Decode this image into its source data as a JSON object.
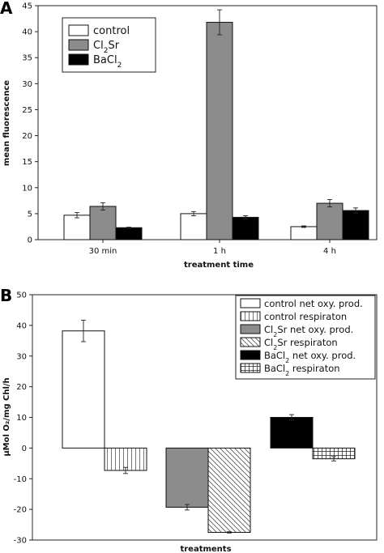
{
  "chart_data": [
    {
      "panel": "A",
      "type": "bar",
      "xlabel": "treatment time",
      "ylabel": "mean fluorescence",
      "ylim": [
        0,
        45
      ],
      "yticks": [
        0,
        5,
        10,
        15,
        20,
        25,
        30,
        35,
        40,
        45
      ],
      "categories": [
        "30 min",
        "1 h",
        "4 h"
      ],
      "grid": false,
      "legend": "top-left",
      "series": [
        {
          "name": "control",
          "label_html": "control",
          "fill": "#ffffff",
          "values": [
            4.7,
            5.0,
            2.5
          ],
          "errors": [
            0.5,
            0.4,
            0.15
          ]
        },
        {
          "name": "Cl2Sr",
          "label_html": "Cl<tspan baseline-shift=\"sub\" font-size=\"9\">2</tspan>Sr",
          "fill": "#8c8c8c",
          "values": [
            6.4,
            41.8,
            7.0
          ],
          "errors": [
            0.7,
            2.4,
            0.7
          ]
        },
        {
          "name": "BaCl2",
          "label_html": "BaCl<tspan baseline-shift=\"sub\" font-size=\"9\">2</tspan>",
          "fill": "#000000",
          "values": [
            2.3,
            4.3,
            5.6
          ],
          "errors": [
            0.1,
            0.3,
            0.5
          ]
        }
      ]
    },
    {
      "panel": "B",
      "type": "bar",
      "xlabel": "treatments",
      "ylabel": "μMol O₂/mg Chl/h",
      "ylim": [
        -30,
        50
      ],
      "yticks": [
        -30,
        -20,
        -10,
        0,
        10,
        20,
        30,
        40,
        50
      ],
      "grid": false,
      "legend": "top-right",
      "series": [
        {
          "name": "control net oxy. prod.",
          "label_html": "control net oxy. prod.",
          "pattern": "plain",
          "values": [
            38.2
          ],
          "errors": [
            3.5
          ]
        },
        {
          "name": "control respiraton",
          "label_html": "control respiraton",
          "pattern": "vlines",
          "values": [
            -7.3
          ],
          "errors": [
            1.0
          ]
        },
        {
          "name": "Cl2Sr net oxy. prod.",
          "label_html": "Cl<tspan baseline-shift=\"sub\" font-size=\"8\">2</tspan>Sr net oxy. prod.",
          "pattern": "gray",
          "values": [
            -19.3
          ],
          "errors": [
            0.9
          ]
        },
        {
          "name": "Cl2Sr respiraton",
          "label_html": "Cl<tspan baseline-shift=\"sub\" font-size=\"8\">2</tspan>Sr respiraton",
          "pattern": "diag",
          "values": [
            -27.5
          ],
          "errors": [
            0.2
          ]
        },
        {
          "name": "BaCl2 net oxy. prod.",
          "label_html": "BaCl<tspan baseline-shift=\"sub\" font-size=\"8\">2</tspan> net oxy. prod.",
          "pattern": "black",
          "values": [
            10.0
          ],
          "errors": [
            0.9
          ]
        },
        {
          "name": "BaCl2 respiraton",
          "label_html": "BaCl<tspan baseline-shift=\"sub\" font-size=\"8\">2</tspan> respiraton",
          "pattern": "grid",
          "values": [
            -3.5
          ],
          "errors": [
            0.7
          ]
        }
      ]
    }
  ]
}
